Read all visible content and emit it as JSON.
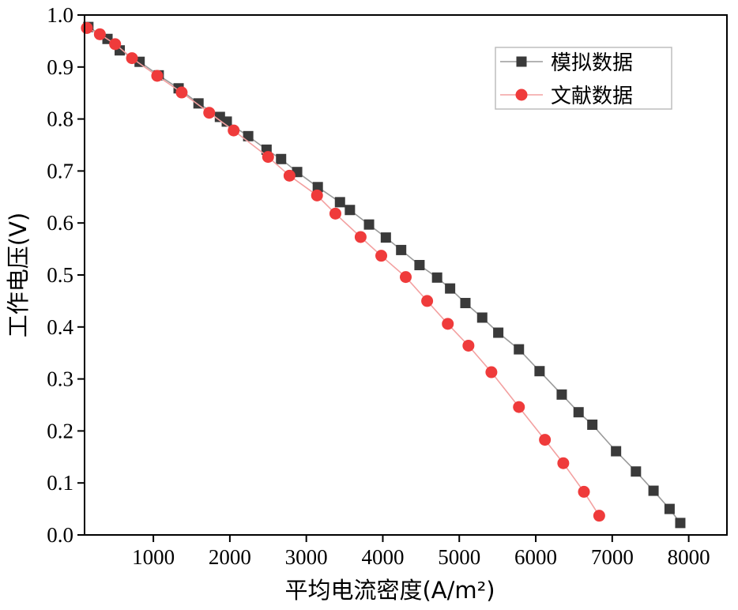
{
  "chart_data": {
    "type": "line",
    "title": "",
    "xlabel": "平均电流密度(A/m²)",
    "ylabel": "工作电压(V)",
    "xlim": [
      100,
      8500
    ],
    "ylim": [
      0.0,
      1.0
    ],
    "xticks": [
      1000,
      2000,
      3000,
      4000,
      5000,
      6000,
      7000,
      8000
    ],
    "yticks": [
      0.0,
      0.1,
      0.2,
      0.3,
      0.4,
      0.5,
      0.6,
      0.7,
      0.8,
      0.9,
      1.0
    ],
    "xtick_labels": [
      "1000",
      "2000",
      "3000",
      "4000",
      "5000",
      "6000",
      "7000",
      "8000"
    ],
    "ytick_labels": [
      "0.0",
      "0.1",
      "0.2",
      "0.3",
      "0.4",
      "0.5",
      "0.6",
      "0.7",
      "0.8",
      "0.9",
      "1.0"
    ],
    "grid": false,
    "legend_position": "top-right",
    "series": [
      {
        "name": "模拟数据",
        "marker": "square",
        "color": "#3a3a3a",
        "line_color": "#9a9a9a",
        "points": [
          [
            150,
            0.977
          ],
          [
            400,
            0.954
          ],
          [
            560,
            0.932
          ],
          [
            820,
            0.91
          ],
          [
            1070,
            0.884
          ],
          [
            1330,
            0.859
          ],
          [
            1590,
            0.83
          ],
          [
            1870,
            0.804
          ],
          [
            1960,
            0.795
          ],
          [
            2240,
            0.767
          ],
          [
            2480,
            0.741
          ],
          [
            2670,
            0.723
          ],
          [
            2880,
            0.698
          ],
          [
            3150,
            0.669
          ],
          [
            3440,
            0.64
          ],
          [
            3570,
            0.625
          ],
          [
            3820,
            0.597
          ],
          [
            4040,
            0.572
          ],
          [
            4240,
            0.548
          ],
          [
            4480,
            0.519
          ],
          [
            4710,
            0.495
          ],
          [
            4880,
            0.474
          ],
          [
            5080,
            0.446
          ],
          [
            5300,
            0.418
          ],
          [
            5510,
            0.389
          ],
          [
            5780,
            0.357
          ],
          [
            6050,
            0.315
          ],
          [
            6340,
            0.27
          ],
          [
            6560,
            0.236
          ],
          [
            6740,
            0.212
          ],
          [
            7050,
            0.161
          ],
          [
            7310,
            0.122
          ],
          [
            7540,
            0.085
          ],
          [
            7750,
            0.05
          ],
          [
            7890,
            0.023
          ]
        ]
      },
      {
        "name": "文献数据",
        "marker": "circle",
        "color": "#ef3b3b",
        "line_color": "#f3a0a0",
        "points": [
          [
            130,
            0.975
          ],
          [
            300,
            0.963
          ],
          [
            500,
            0.944
          ],
          [
            720,
            0.917
          ],
          [
            1050,
            0.883
          ],
          [
            1370,
            0.851
          ],
          [
            1730,
            0.812
          ],
          [
            2050,
            0.778
          ],
          [
            2500,
            0.727
          ],
          [
            2780,
            0.691
          ],
          [
            3140,
            0.653
          ],
          [
            3380,
            0.618
          ],
          [
            3710,
            0.573
          ],
          [
            3980,
            0.537
          ],
          [
            4300,
            0.496
          ],
          [
            4580,
            0.45
          ],
          [
            4850,
            0.406
          ],
          [
            5120,
            0.364
          ],
          [
            5420,
            0.313
          ],
          [
            5780,
            0.246
          ],
          [
            6120,
            0.183
          ],
          [
            6360,
            0.138
          ],
          [
            6630,
            0.083
          ],
          [
            6830,
            0.037
          ]
        ]
      }
    ]
  }
}
